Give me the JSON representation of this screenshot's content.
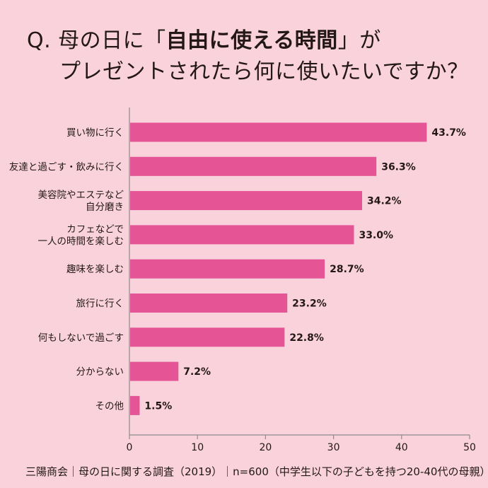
{
  "title": {
    "q": "Q.",
    "line1_before": "母の日に",
    "line1_open": "「",
    "line1_emphasis": "自由に使える時間",
    "line1_close": "」",
    "line1_after": "が",
    "line2": "プレゼントされたら何に使いたいですか？"
  },
  "footer": {
    "text": "三陽商会｜母の日に関する調査（2019）｜n=600（中学生以下の子どもを持つ20-40代の母親）"
  },
  "colors": {
    "background": "#f9d2dc",
    "bar": "#e55494",
    "axis": "#8c8c8c",
    "text": "#231815"
  },
  "chart_data": {
    "type": "bar",
    "orientation": "horizontal",
    "categories": [
      [
        "買い物に行く"
      ],
      [
        "友達と過ごす・飲みに行く"
      ],
      [
        "美容院やエステなど",
        "自分磨き"
      ],
      [
        "カフェなどで",
        "一人の時間を楽しむ"
      ],
      [
        "趣味を楽しむ"
      ],
      [
        "旅行に行く"
      ],
      [
        "何もしないで過ごす"
      ],
      [
        "分からない"
      ],
      [
        "その他"
      ]
    ],
    "values": [
      43.7,
      36.3,
      34.2,
      33.0,
      28.7,
      23.2,
      22.8,
      7.2,
      1.5
    ],
    "value_labels": [
      "43.7%",
      "36.3%",
      "34.2%",
      "33.0%",
      "28.7%",
      "23.2%",
      "22.8%",
      "7.2%",
      "1.5%"
    ],
    "xlim": [
      0,
      50
    ],
    "xticks": [
      0,
      10,
      20,
      30,
      40,
      50
    ],
    "xtick_labels": [
      "0",
      "10",
      "20",
      "30",
      "40",
      "50"
    ],
    "xlabel": "",
    "ylabel": "",
    "grid": false
  }
}
